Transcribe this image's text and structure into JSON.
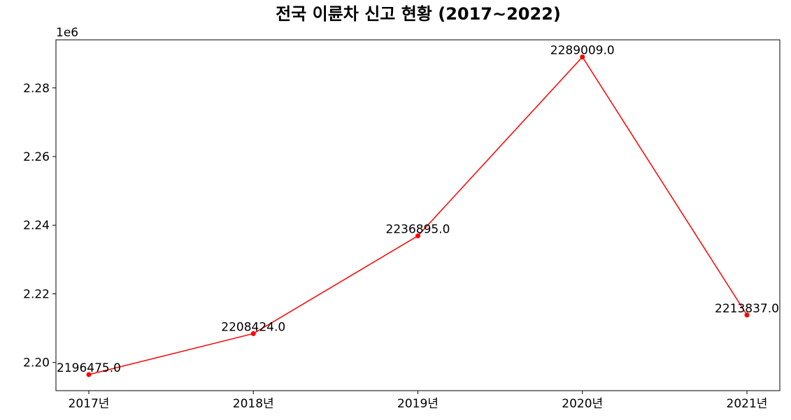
{
  "chart_data": {
    "type": "line",
    "title": "전국 이륜차 신고 현황 (2017~2022)",
    "y_offset_label": "1e6",
    "categories": [
      "2017년",
      "2018년",
      "2019년",
      "2020년",
      "2021년"
    ],
    "values": [
      2196475.0,
      2208424.0,
      2236895.0,
      2289009.0,
      2213837.0
    ],
    "data_labels": [
      "2196475.0",
      "2208424.0",
      "2236895.0",
      "2289009.0",
      "2213837.0"
    ],
    "yticks": [
      2.2,
      2.22,
      2.24,
      2.26,
      2.28
    ],
    "ytick_labels": [
      "2.20",
      "2.22",
      "2.24",
      "2.26",
      "2.28"
    ],
    "y_scale": 1000000,
    "ylim": [
      2191800,
      2294000
    ],
    "grid": false,
    "line_color": "#ff0000",
    "marker_color": "#ff0000"
  }
}
